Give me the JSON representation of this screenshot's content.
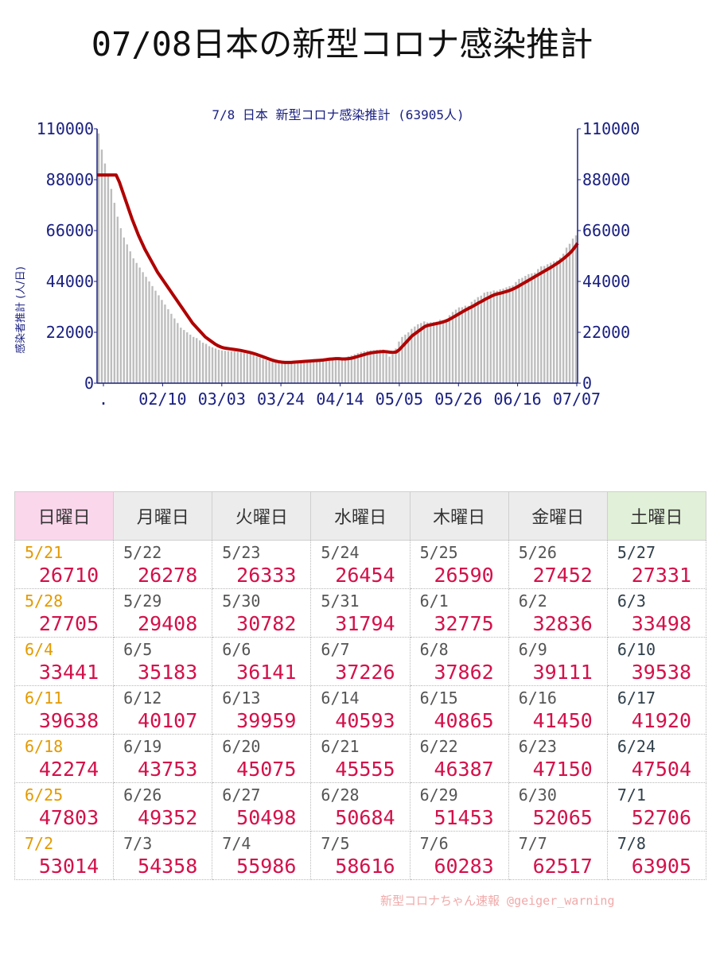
{
  "page_title": "07/08日本の新型コロナ感染推計",
  "chart_data": {
    "type": "bar",
    "title": "7/8 日本 新型コロナ感染推計 (63905人)",
    "ylabel": "感染者推計 (人/日)",
    "ylim": [
      0,
      110000
    ],
    "yticks": [
      "110000",
      "88000",
      "66000",
      "44000",
      "22000",
      "0"
    ],
    "xticks": [
      ".",
      "02/10",
      "03/03",
      "03/24",
      "04/14",
      "05/05",
      "05/26",
      "06/16",
      "07/07"
    ],
    "grid": false,
    "colors": {
      "bars": "#bdbdbd",
      "line": "#b00000",
      "axis": "#1a2080"
    },
    "bar_series": {
      "name": "daily",
      "values": [
        108000,
        101000,
        95000,
        90000,
        84000,
        78000,
        72000,
        67000,
        63000,
        60000,
        57000,
        54000,
        52000,
        50000,
        48000,
        46000,
        44000,
        42000,
        40000,
        38000,
        36000,
        34000,
        32000,
        30000,
        28000,
        26000,
        24000,
        23000,
        22000,
        21000,
        20000,
        19500,
        18500,
        17500,
        17000,
        16000,
        15500,
        15000,
        14500,
        14200,
        14000,
        13900,
        13800,
        13700,
        13500,
        13300,
        13000,
        12800,
        12500,
        12000,
        11500,
        11000,
        10500,
        10000,
        9600,
        9200,
        9000,
        8800,
        8800,
        8800,
        9000,
        9300,
        9500,
        9500,
        9600,
        9700,
        9800,
        9900,
        10000,
        10200,
        10400,
        10600,
        10800,
        10900,
        11000,
        10900,
        10800,
        10900,
        11200,
        11600,
        12000,
        12500,
        13000,
        13500,
        13800,
        14000,
        14200,
        14300,
        14400,
        14500,
        14500,
        13000,
        11500,
        12500,
        15000,
        18000,
        20000,
        21000,
        22000,
        23500,
        24500,
        25500,
        26000,
        26710,
        26278,
        26333,
        26454,
        26590,
        27452,
        27331,
        27705,
        29408,
        30782,
        31794,
        32775,
        32836,
        33498,
        33441,
        35183,
        36141,
        37226,
        37862,
        39111,
        39538,
        39638,
        40107,
        39959,
        40593,
        40865,
        41450,
        41920,
        42274,
        43753,
        45075,
        45555,
        46387,
        47150,
        47504,
        47803,
        49352,
        50498,
        50684,
        51453,
        52065,
        52706,
        53014,
        54358,
        55986,
        58616,
        60283,
        62517,
        63905
      ]
    },
    "line_series": {
      "name": "average",
      "values": [
        90000,
        90000,
        90000,
        90000,
        90000,
        90000,
        90000,
        87000,
        83000,
        79000,
        75000,
        71000,
        67500,
        64000,
        61000,
        58000,
        55500,
        53000,
        50500,
        48000,
        46000,
        44000,
        42000,
        40000,
        38000,
        36000,
        34000,
        32000,
        30000,
        28000,
        26000,
        24500,
        23000,
        21500,
        20000,
        19000,
        18000,
        17000,
        16200,
        15600,
        15200,
        15000,
        14800,
        14600,
        14400,
        14200,
        13900,
        13600,
        13300,
        12900,
        12500,
        12000,
        11500,
        11000,
        10500,
        10000,
        9600,
        9300,
        9100,
        9000,
        9000,
        9000,
        9100,
        9200,
        9300,
        9400,
        9500,
        9600,
        9700,
        9800,
        9900,
        10000,
        10200,
        10400,
        10500,
        10600,
        10600,
        10500,
        10500,
        10600,
        10800,
        11200,
        11600,
        12000,
        12400,
        12800,
        13100,
        13300,
        13500,
        13600,
        13700,
        13600,
        13400,
        13300,
        13500,
        14500,
        16000,
        17500,
        19000,
        20500,
        21500,
        22500,
        23500,
        24500,
        25000,
        25300,
        25600,
        25900,
        26200,
        26600,
        27100,
        27800,
        28600,
        29400,
        30200,
        31000,
        31800,
        32500,
        33200,
        34000,
        34800,
        35500,
        36300,
        37000,
        37700,
        38300,
        38700,
        39000,
        39400,
        39800,
        40300,
        40900,
        41600,
        42400,
        43200,
        44000,
        44800,
        45600,
        46400,
        47200,
        48000,
        48800,
        49600,
        50400,
        51300,
        52200,
        53200,
        54300,
        55500,
        56800,
        58500,
        60500
      ]
    }
  },
  "table": {
    "headers": [
      {
        "label": "日曜日",
        "kind": "sun"
      },
      {
        "label": "月曜日",
        "kind": "wk"
      },
      {
        "label": "火曜日",
        "kind": "wk"
      },
      {
        "label": "水曜日",
        "kind": "wk"
      },
      {
        "label": "木曜日",
        "kind": "wk"
      },
      {
        "label": "金曜日",
        "kind": "wk"
      },
      {
        "label": "土曜日",
        "kind": "sat"
      }
    ],
    "rows": [
      [
        {
          "date": "5/21",
          "value": "26710"
        },
        {
          "date": "5/22",
          "value": "26278"
        },
        {
          "date": "5/23",
          "value": "26333"
        },
        {
          "date": "5/24",
          "value": "26454"
        },
        {
          "date": "5/25",
          "value": "26590"
        },
        {
          "date": "5/26",
          "value": "27452"
        },
        {
          "date": "5/27",
          "value": "27331"
        }
      ],
      [
        {
          "date": "5/28",
          "value": "27705"
        },
        {
          "date": "5/29",
          "value": "29408"
        },
        {
          "date": "5/30",
          "value": "30782"
        },
        {
          "date": "5/31",
          "value": "31794"
        },
        {
          "date": "6/1",
          "value": "32775"
        },
        {
          "date": "6/2",
          "value": "32836"
        },
        {
          "date": "6/3",
          "value": "33498"
        }
      ],
      [
        {
          "date": "6/4",
          "value": "33441"
        },
        {
          "date": "6/5",
          "value": "35183"
        },
        {
          "date": "6/6",
          "value": "36141"
        },
        {
          "date": "6/7",
          "value": "37226"
        },
        {
          "date": "6/8",
          "value": "37862"
        },
        {
          "date": "6/9",
          "value": "39111"
        },
        {
          "date": "6/10",
          "value": "39538"
        }
      ],
      [
        {
          "date": "6/11",
          "value": "39638"
        },
        {
          "date": "6/12",
          "value": "40107"
        },
        {
          "date": "6/13",
          "value": "39959"
        },
        {
          "date": "6/14",
          "value": "40593"
        },
        {
          "date": "6/15",
          "value": "40865"
        },
        {
          "date": "6/16",
          "value": "41450"
        },
        {
          "date": "6/17",
          "value": "41920"
        }
      ],
      [
        {
          "date": "6/18",
          "value": "42274"
        },
        {
          "date": "6/19",
          "value": "43753"
        },
        {
          "date": "6/20",
          "value": "45075"
        },
        {
          "date": "6/21",
          "value": "45555"
        },
        {
          "date": "6/22",
          "value": "46387"
        },
        {
          "date": "6/23",
          "value": "47150"
        },
        {
          "date": "6/24",
          "value": "47504"
        }
      ],
      [
        {
          "date": "6/25",
          "value": "47803"
        },
        {
          "date": "6/26",
          "value": "49352"
        },
        {
          "date": "6/27",
          "value": "50498"
        },
        {
          "date": "6/28",
          "value": "50684"
        },
        {
          "date": "6/29",
          "value": "51453"
        },
        {
          "date": "6/30",
          "value": "52065"
        },
        {
          "date": "7/1",
          "value": "52706"
        }
      ],
      [
        {
          "date": "7/2",
          "value": "53014"
        },
        {
          "date": "7/3",
          "value": "54358"
        },
        {
          "date": "7/4",
          "value": "55986"
        },
        {
          "date": "7/5",
          "value": "58616"
        },
        {
          "date": "7/6",
          "value": "60283"
        },
        {
          "date": "7/7",
          "value": "62517"
        },
        {
          "date": "7/8",
          "value": "63905"
        }
      ]
    ]
  },
  "credit": "新型コロナちゃん速報 @geiger_warning"
}
